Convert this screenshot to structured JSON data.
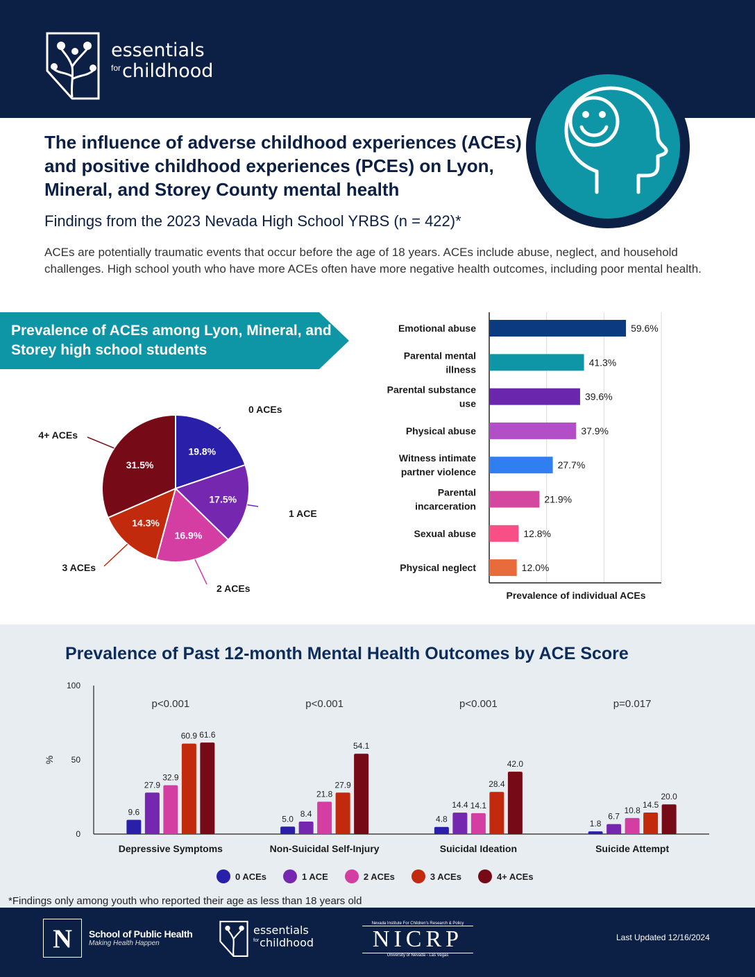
{
  "header": {
    "logo_line1": "essentials",
    "logo_for": "for",
    "logo_line2": "childhood"
  },
  "title": "The influence of adverse childhood experiences (ACEs) and positive childhood experiences (PCEs) on Lyon, Mineral, and Storey County mental health",
  "subtitle": "Findings from the 2023 Nevada High School YRBS (n = 422)*",
  "intro": "ACEs are potentially traumatic events that occur before the age of 18 years. ACEs include abuse, neglect, and household challenges. High school youth who have more ACEs often have more negative health outcomes, including poor mental health.",
  "banner_title": "Prevalence of ACEs among Lyon, Mineral, and Storey high school students",
  "grouped_title": "Prevalence of Past 12-month Mental Health Outcomes by ACE Score",
  "footnote": "*Findings only among youth who reported their age as less than 18 years old",
  "footer": {
    "n_letter": "N",
    "sph_title": "School of Public Health",
    "sph_sub": "Making Health Happen",
    "efc_line1": "essentials",
    "efc_for": "for",
    "efc_line2": "childhood",
    "nicrp_top": "Nevada Institute For Children's Research & Policy",
    "nicrp": "NICRP",
    "nicrp_bottom": "University of Nevada - Las Vegas",
    "updated": "Last Updated 12/16/2024"
  },
  "colors": {
    "navy": "#0c1f44",
    "teal": "#0e96a6",
    "ace0": "#2a1fa8",
    "ace1": "#7527b0",
    "ace2": "#d43ea3",
    "ace3": "#c22a0e",
    "ace4": "#760a17"
  },
  "chart_data": [
    {
      "type": "pie",
      "categories": [
        "0 ACEs",
        "1 ACE",
        "2 ACEs",
        "3 ACEs",
        "4+ ACEs"
      ],
      "values": [
        19.8,
        17.5,
        16.9,
        14.3,
        31.5
      ],
      "value_labels": [
        "19.8%",
        "17.5%",
        "16.9%",
        "14.3%",
        "31.5%"
      ],
      "colors": [
        "#2a1fa8",
        "#7527b0",
        "#d43ea3",
        "#c22a0e",
        "#760a17"
      ]
    },
    {
      "type": "bar",
      "orientation": "horizontal",
      "categories": [
        [
          "Emotional abuse"
        ],
        [
          "Parental mental",
          "illness"
        ],
        [
          "Parental substance",
          "use"
        ],
        [
          "Physical abuse"
        ],
        [
          "Witness intimate",
          "partner violence"
        ],
        [
          "Parental",
          "incarceration"
        ],
        [
          "Sexual abuse"
        ],
        [
          "Physical neglect"
        ]
      ],
      "values": [
        59.6,
        41.3,
        39.6,
        37.9,
        27.7,
        21.9,
        12.8,
        12.0
      ],
      "value_labels": [
        "59.6%",
        "41.3%",
        "39.6%",
        "37.9%",
        "27.7%",
        "21.9%",
        "12.8%",
        "12.0%"
      ],
      "colors": [
        "#0c3a80",
        "#0e96a6",
        "#6a26ad",
        "#b34fc6",
        "#2f7ff0",
        "#d3479f",
        "#f74f86",
        "#e86b3c"
      ],
      "xlabel": "Prevalence of individual ACEs",
      "xlim": [
        0,
        75
      ],
      "grid": true
    },
    {
      "type": "bar",
      "orientation": "vertical",
      "categories": [
        "Depressive Symptoms",
        "Non-Suicidal Self-Injury",
        "Suicidal Ideation",
        "Suicide Attempt"
      ],
      "pvalues": [
        "p<0.001",
        "p<0.001",
        "p<0.001",
        "p=0.017"
      ],
      "series": [
        {
          "name": "0 ACEs",
          "color": "#2a1fa8",
          "values": [
            9.6,
            5.0,
            4.8,
            1.8
          ],
          "labels": [
            "9.6",
            "5.0",
            "4.8",
            "1.8"
          ]
        },
        {
          "name": "1 ACE",
          "color": "#7527b0",
          "values": [
            27.9,
            8.4,
            14.4,
            6.7
          ],
          "labels": [
            "27.9",
            "8.4",
            "14.4",
            "6.7"
          ]
        },
        {
          "name": "2 ACEs",
          "color": "#d43ea3",
          "values": [
            32.9,
            21.8,
            14.1,
            10.8
          ],
          "labels": [
            "32.9",
            "21.8",
            "14.1",
            "10.8"
          ]
        },
        {
          "name": "3 ACEs",
          "color": "#c22a0e",
          "values": [
            60.9,
            27.9,
            28.4,
            14.5
          ],
          "labels": [
            "60.9",
            "27.9",
            "28.4",
            "14.5"
          ]
        },
        {
          "name": "4+ ACEs",
          "color": "#760a17",
          "values": [
            61.6,
            54.1,
            42.0,
            20.0
          ],
          "labels": [
            "61.6",
            "54.1",
            "42.0",
            "20.0"
          ]
        }
      ],
      "ylabel": "%",
      "ylim": [
        0,
        100
      ],
      "yticks": [
        "0",
        "50",
        "100"
      ],
      "legend": "bottom"
    }
  ]
}
